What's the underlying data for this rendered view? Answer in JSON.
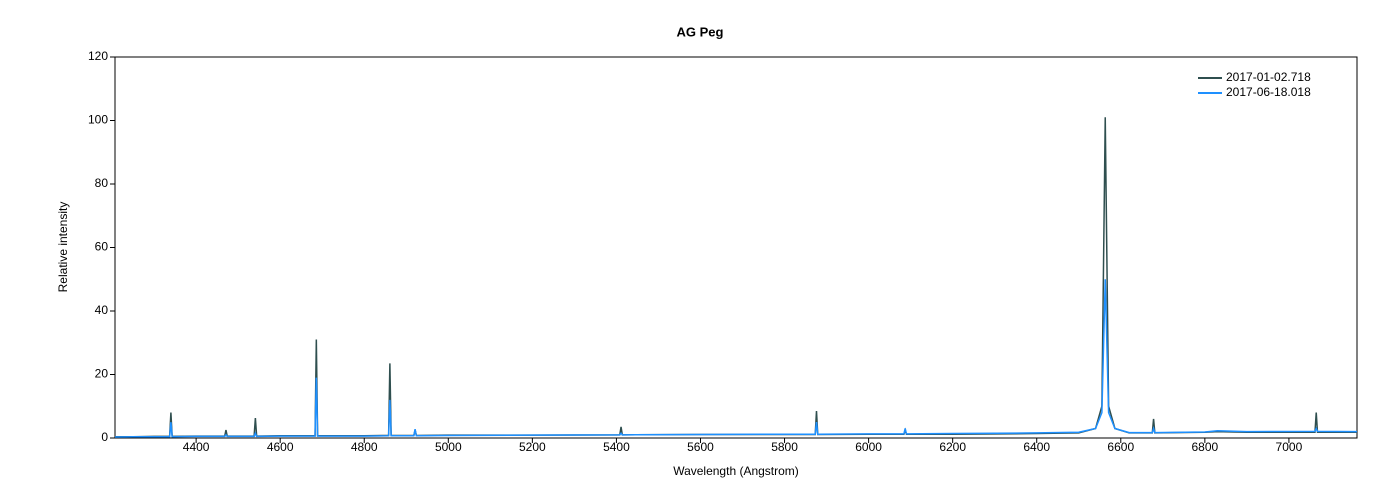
{
  "chart_data": {
    "type": "line",
    "title": "AG Peg",
    "x_label": "Wavelength (Angstrom)",
    "y_label": "Relative intensity",
    "x": [
      4207,
      4250,
      4300,
      4337,
      4340,
      4343,
      4400,
      4468,
      4471,
      4474,
      4538,
      4541,
      4544,
      4600,
      4683,
      4686,
      4689,
      4750,
      4800,
      4858,
      4861,
      4864,
      4918,
      4921,
      4924,
      5000,
      5200,
      5408,
      5411,
      5414,
      5600,
      5800,
      5873,
      5876,
      5879,
      6000,
      6084,
      6087,
      6090,
      6200,
      6400,
      6500,
      6540,
      6555,
      6563,
      6571,
      6586,
      6620,
      6675,
      6678,
      6681,
      6800,
      6830,
      6900,
      7062,
      7065,
      7068,
      7162
    ],
    "series": [
      {
        "name": "2017-01-02.718",
        "color": "#2f4f4f",
        "values": [
          0.4,
          0.4,
          0.5,
          0.5,
          8,
          0.5,
          0.6,
          0.6,
          2.5,
          0.6,
          0.6,
          6.3,
          0.6,
          0.7,
          0.7,
          31,
          0.7,
          0.7,
          0.7,
          0.8,
          23.5,
          0.8,
          0.8,
          2.5,
          0.8,
          0.9,
          0.9,
          1,
          3.5,
          1,
          1.1,
          1.1,
          1.1,
          8.5,
          1.1,
          1.2,
          1.2,
          2.5,
          1.2,
          1.2,
          1.4,
          1.6,
          3,
          10,
          101,
          10,
          3,
          1.6,
          1.6,
          6,
          1.6,
          1.8,
          2,
          1.8,
          1.8,
          8,
          1.8,
          1.8
        ]
      },
      {
        "name": "2017-06-18.018",
        "color": "#1e90ff",
        "values": [
          0.3,
          0.4,
          0.4,
          0.4,
          5,
          0.4,
          0.5,
          0.5,
          1,
          0.5,
          0.5,
          1.5,
          0.5,
          0.6,
          0.6,
          19,
          0.6,
          0.6,
          0.6,
          0.7,
          12,
          0.7,
          0.7,
          2.8,
          0.7,
          0.8,
          0.9,
          1,
          1.5,
          1,
          1.1,
          1.2,
          1.2,
          5,
          1.2,
          1.3,
          1.3,
          3,
          1.3,
          1.4,
          1.6,
          1.8,
          3,
          8,
          50,
          8,
          3,
          1.7,
          1.7,
          3,
          1.7,
          1.9,
          2.3,
          2,
          2.1,
          3,
          2.1,
          2
        ]
      }
    ],
    "xlim": [
      4207,
      7162
    ],
    "ylim": [
      0,
      120
    ],
    "xticks": [
      4400,
      4600,
      4800,
      5000,
      5200,
      5400,
      5600,
      5800,
      6000,
      6200,
      6400,
      6600,
      6800,
      7000
    ],
    "yticks": [
      0,
      20,
      40,
      60,
      80,
      100,
      120
    ],
    "legend": "upper right"
  }
}
